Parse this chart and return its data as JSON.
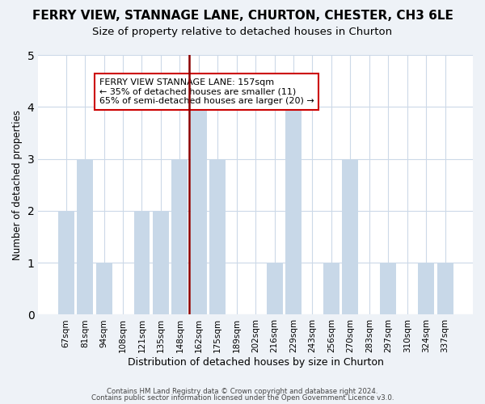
{
  "title": "FERRY VIEW, STANNAGE LANE, CHURTON, CHESTER, CH3 6LE",
  "subtitle": "Size of property relative to detached houses in Churton",
  "xlabel": "Distribution of detached houses by size in Churton",
  "ylabel": "Number of detached properties",
  "categories": [
    "67sqm",
    "81sqm",
    "94sqm",
    "108sqm",
    "121sqm",
    "135sqm",
    "148sqm",
    "162sqm",
    "175sqm",
    "189sqm",
    "202sqm",
    "216sqm",
    "229sqm",
    "243sqm",
    "256sqm",
    "270sqm",
    "283sqm",
    "297sqm",
    "310sqm",
    "324sqm",
    "337sqm"
  ],
  "values": [
    2,
    3,
    1,
    0,
    2,
    2,
    3,
    4,
    3,
    0,
    0,
    1,
    4,
    0,
    1,
    3,
    0,
    1,
    0,
    1,
    1
  ],
  "bar_color": "#c8d8e8",
  "reference_line_index": 7,
  "reference_line_color": "#8b0000",
  "ylim": [
    0,
    5
  ],
  "yticks": [
    0,
    1,
    2,
    3,
    4,
    5
  ],
  "annotation_title": "FERRY VIEW STANNAGE LANE: 157sqm",
  "annotation_line1": "← 35% of detached houses are smaller (11)",
  "annotation_line2": "65% of semi-detached houses are larger (20) →",
  "annotation_box_color": "#ffffff",
  "annotation_box_edgecolor": "#cc0000",
  "footer1": "Contains HM Land Registry data © Crown copyright and database right 2024.",
  "footer2": "Contains public sector information licensed under the Open Government Licence v3.0.",
  "bg_color": "#eef2f7",
  "plot_bg_color": "#ffffff",
  "grid_color": "#ccd9e8",
  "title_fontsize": 11,
  "subtitle_fontsize": 9.5
}
